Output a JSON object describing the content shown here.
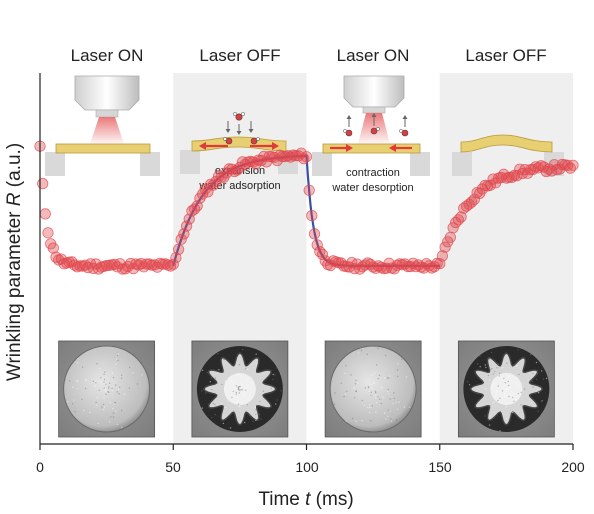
{
  "chart_data": {
    "type": "scatter",
    "xlabel_prefix": "Time ",
    "xlabel_var": "t",
    "xlabel_unit": " (ms)",
    "ylabel_prefix": "Wrinkling parameter ",
    "ylabel_var": "R",
    "ylabel_unit": " (a.u.)",
    "xlim": [
      0,
      200
    ],
    "ylim": [
      0,
      1
    ],
    "x_ticks": [
      "0",
      "50",
      "100",
      "150",
      "200"
    ],
    "y_ticks_shown": false,
    "grid": false,
    "shaded_intervals": [
      [
        50,
        100
      ],
      [
        150,
        200
      ]
    ],
    "phases": [
      {
        "label": "Laser ON",
        "start": 0,
        "end": 50
      },
      {
        "label": "Laser OFF",
        "start": 50,
        "end": 100
      },
      {
        "label": "Laser ON",
        "start": 100,
        "end": 150
      },
      {
        "label": "Laser OFF",
        "start": 150,
        "end": 200
      }
    ],
    "annotations": [
      {
        "line1": "expansion",
        "line2": "water adsorption"
      },
      {
        "line1": "contraction",
        "line2": "water desorption"
      }
    ],
    "series": [
      {
        "marker": "circle",
        "color": "#e0474c",
        "segments": [
          {
            "x_start": 0,
            "x_end": 50,
            "y_start": 0.8,
            "y_end": 0.48,
            "tau": 2.5,
            "shape": "exp_decay"
          },
          {
            "x_start": 50,
            "x_end": 100,
            "y_start": 0.48,
            "y_end": 0.78,
            "tau": 11,
            "shape": "exp_rise"
          },
          {
            "x_start": 100,
            "x_end": 150,
            "y_start": 0.78,
            "y_end": 0.48,
            "tau": 2.5,
            "shape": "exp_decay"
          },
          {
            "x_start": 150,
            "x_end": 200,
            "y_start": 0.48,
            "y_end": 0.75,
            "tau": 11,
            "shape": "exp_rise"
          }
        ]
      },
      {
        "marker": "line",
        "color": "#3a4fa8",
        "x_range": [
          50,
          150
        ],
        "role": "fit"
      }
    ],
    "insets": [
      {
        "center_x": 25,
        "state": "flat"
      },
      {
        "center_x": 75,
        "state": "wrinkled"
      },
      {
        "center_x": 125,
        "state": "flat"
      },
      {
        "center_x": 175,
        "state": "wrinkled"
      }
    ],
    "colors": {
      "shade": "#efefef",
      "film": "#e8cf72",
      "film_edge": "#b79b3a",
      "support": "#d9d9d9",
      "laser": "#e86a6a",
      "arrow": "#e03a3a"
    }
  }
}
